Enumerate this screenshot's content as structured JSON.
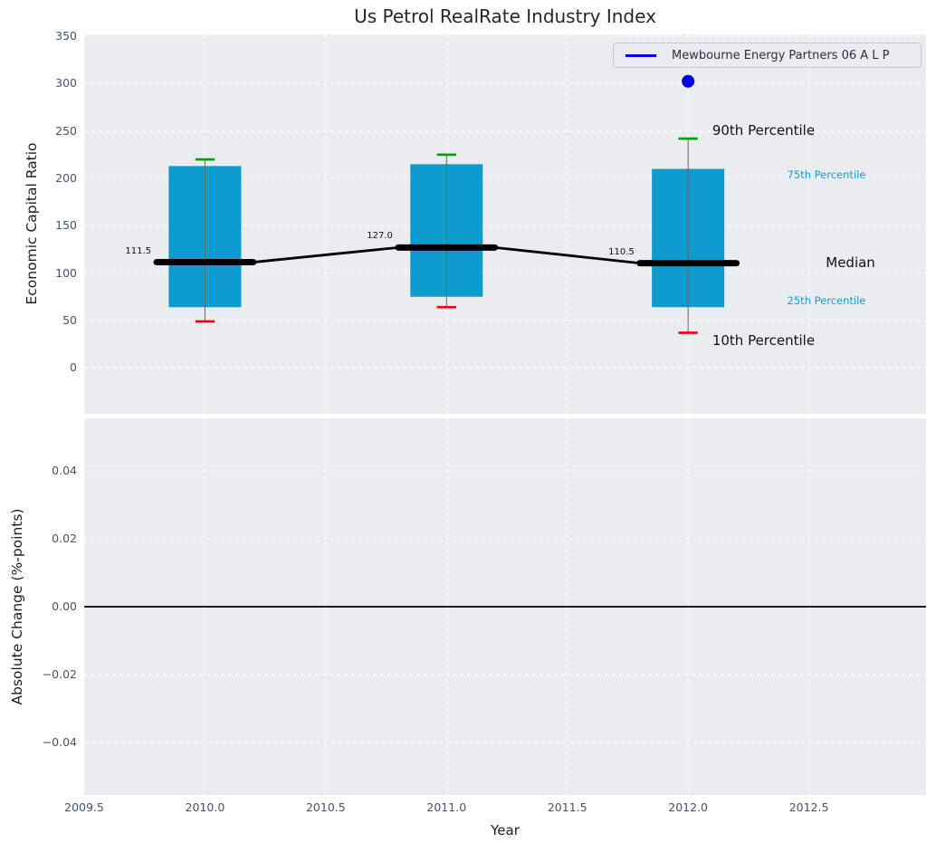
{
  "figure": {
    "title": "Us Petrol RealRate Industry Index",
    "xlabel": "Year"
  },
  "legend": {
    "label": "Mewbourne Energy Partners 06 A L P"
  },
  "colors": {
    "plot_background": "#e9edf0",
    "gridline": "#ffffff",
    "box_fill": "#0d9ccd",
    "whisker_line": "#666666",
    "cap_90th": "#00a000",
    "cap_10th": "#f20000",
    "median_line": "#000000",
    "company_blue": "#0000e0",
    "minor_label_cyan": "#189ad2",
    "tick_text": "#44546a"
  },
  "chart_data": [
    {
      "type": "boxplot",
      "title": "Us Petrol RealRate Industry Index",
      "ylabel": "Economic Capital Ratio",
      "x": [
        2010,
        2011,
        2012
      ],
      "series": [
        {
          "name": "90th Percentile",
          "values": [
            220,
            225,
            242
          ]
        },
        {
          "name": "75th Percentile",
          "values": [
            213,
            215,
            210
          ]
        },
        {
          "name": "Median",
          "values": [
            111.5,
            127.0,
            110.5
          ]
        },
        {
          "name": "25th Percentile",
          "values": [
            64,
            75,
            64
          ]
        },
        {
          "name": "10th Percentile",
          "values": [
            49,
            64,
            37
          ]
        }
      ],
      "median_labels": [
        "111.5",
        "127.0",
        "110.5"
      ],
      "company_point": {
        "name": "Mewbourne Energy Partners 06 A L P",
        "x": 2012,
        "y": 302.5
      },
      "annotations": [
        {
          "label": "90th Percentile",
          "x": 2012.1,
          "y": 250,
          "style": "major"
        },
        {
          "label": "75th Percentile",
          "x": 2012.41,
          "y": 204,
          "style": "minor"
        },
        {
          "label": "Median",
          "x": 2012.57,
          "y": 110.5,
          "style": "major"
        },
        {
          "label": "25th Percentile",
          "x": 2012.41,
          "y": 70.5,
          "style": "minor"
        },
        {
          "label": "10th Percentile",
          "x": 2012.1,
          "y": 27.5,
          "style": "major"
        }
      ],
      "ylim": [
        -48.6,
        352
      ],
      "xlim": [
        2009.5,
        2012.985
      ],
      "yticks": {
        "values": [
          0,
          50,
          100,
          150,
          200,
          250,
          300,
          350
        ],
        "labels": [
          "0",
          "50",
          "100",
          "150",
          "200",
          "250",
          "300",
          "350"
        ]
      },
      "grid": true,
      "legend_position": "upper right"
    },
    {
      "type": "line",
      "ylabel": "Absolute Change (%-points)",
      "zero_line": 0.0,
      "ylim": [
        -0.0555,
        0.0555
      ],
      "xlim": [
        2009.5,
        2012.985
      ],
      "yticks": {
        "values": [
          0.04,
          0.02,
          0.0,
          -0.02,
          -0.04
        ],
        "labels": [
          "0.04",
          "0.02",
          "0.00",
          "−0.02",
          "−0.04"
        ]
      },
      "grid": true
    }
  ],
  "xticks": {
    "values": [
      2009.5,
      2010.0,
      2010.5,
      2011.0,
      2011.5,
      2012.0,
      2012.5
    ],
    "labels": [
      "2009.5",
      "2010.0",
      "2010.5",
      "2011.0",
      "2011.5",
      "2012.0",
      "2012.5"
    ]
  }
}
